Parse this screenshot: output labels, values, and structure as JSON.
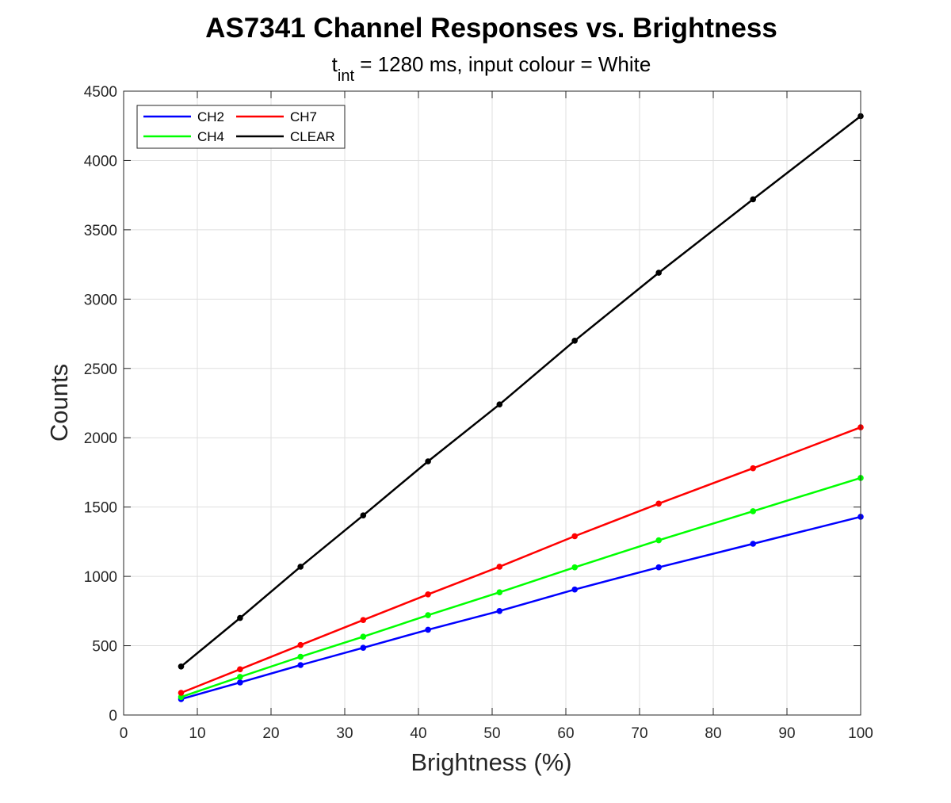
{
  "chart_data": {
    "type": "line",
    "title": "AS7341 Channel Responses vs. Brightness",
    "subtitle": {
      "prefix": "t",
      "subscript": "int",
      "suffix": " = 1280 ms, input colour = White"
    },
    "xlabel": "Brightness (%)",
    "ylabel": "Counts",
    "xlim": [
      0,
      100
    ],
    "ylim": [
      0,
      4500
    ],
    "xticks": [
      0,
      10,
      20,
      30,
      40,
      50,
      60,
      70,
      80,
      90,
      100
    ],
    "yticks": [
      0,
      500,
      1000,
      1500,
      2000,
      2500,
      3000,
      3500,
      4000,
      4500
    ],
    "grid": true,
    "legend_position": "top-left",
    "x": [
      7.8,
      15.8,
      24,
      32.5,
      41.3,
      51,
      61.2,
      72.6,
      85.4,
      100
    ],
    "series": [
      {
        "name": "CH2",
        "color": "#0000ff",
        "values": [
          115,
          235,
          360,
          485,
          615,
          750,
          905,
          1065,
          1235,
          1430
        ]
      },
      {
        "name": "CH4",
        "color": "#00ff00",
        "values": [
          130,
          275,
          420,
          565,
          720,
          885,
          1065,
          1260,
          1470,
          1710
        ]
      },
      {
        "name": "CH7",
        "color": "#ff0000",
        "values": [
          160,
          330,
          505,
          685,
          870,
          1070,
          1290,
          1525,
          1780,
          2075
        ]
      },
      {
        "name": "CLEAR",
        "color": "#000000",
        "values": [
          350,
          700,
          1070,
          1440,
          1830,
          2240,
          2700,
          3190,
          3720,
          4320
        ]
      }
    ]
  }
}
